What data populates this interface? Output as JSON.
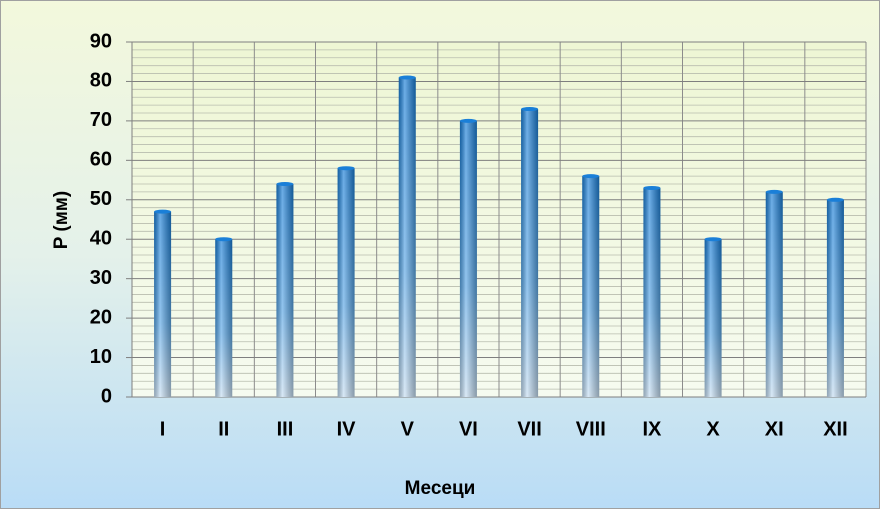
{
  "chart_data": {
    "type": "bar",
    "x_label": "Месеци",
    "y_label": "P (мм)",
    "categories": [
      "I",
      "II",
      "III",
      "IV",
      "V",
      "VI",
      "VII",
      "VIII",
      "IX",
      "X",
      "XI",
      "XII"
    ],
    "values": [
      47,
      40,
      54,
      58,
      81,
      70,
      73,
      56,
      53,
      40,
      52,
      50
    ],
    "color": "#1a7fd8",
    "ylim": [
      0,
      90
    ],
    "yticks": [
      0,
      10,
      20,
      30,
      40,
      50,
      60,
      70,
      80,
      90
    ],
    "grid": true,
    "minor_grid": true
  }
}
